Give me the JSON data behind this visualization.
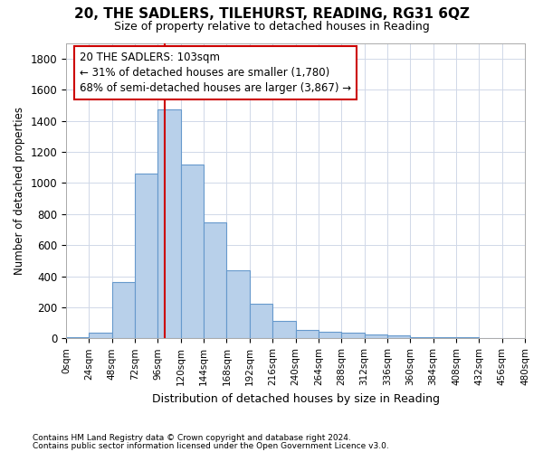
{
  "title1": "20, THE SADLERS, TILEHURST, READING, RG31 6QZ",
  "title2": "Size of property relative to detached houses in Reading",
  "xlabel": "Distribution of detached houses by size in Reading",
  "ylabel": "Number of detached properties",
  "footnote1": "Contains HM Land Registry data © Crown copyright and database right 2024.",
  "footnote2": "Contains public sector information licensed under the Open Government Licence v3.0.",
  "bin_edges": [
    0,
    24,
    48,
    72,
    96,
    120,
    144,
    168,
    192,
    216,
    240,
    264,
    288,
    312,
    336,
    360,
    384,
    408,
    432,
    456,
    480
  ],
  "bar_heights": [
    10,
    35,
    360,
    1060,
    1470,
    1120,
    745,
    435,
    225,
    110,
    55,
    45,
    35,
    25,
    20,
    10,
    5,
    5,
    3,
    2
  ],
  "bar_color": "#b8d0ea",
  "bar_edge_color": "#6699cc",
  "property_size": 103,
  "vline_color": "#cc0000",
  "annotation_line1": "20 THE SADLERS: 103sqm",
  "annotation_line2": "← 31% of detached houses are smaller (1,780)",
  "annotation_line3": "68% of semi-detached houses are larger (3,867) →",
  "annotation_box_color": "#ffffff",
  "annotation_border_color": "#cc0000",
  "ylim": [
    0,
    1900
  ],
  "yticks": [
    0,
    200,
    400,
    600,
    800,
    1000,
    1200,
    1400,
    1600,
    1800
  ],
  "background_color": "#ffffff",
  "grid_color": "#d0d8e8"
}
